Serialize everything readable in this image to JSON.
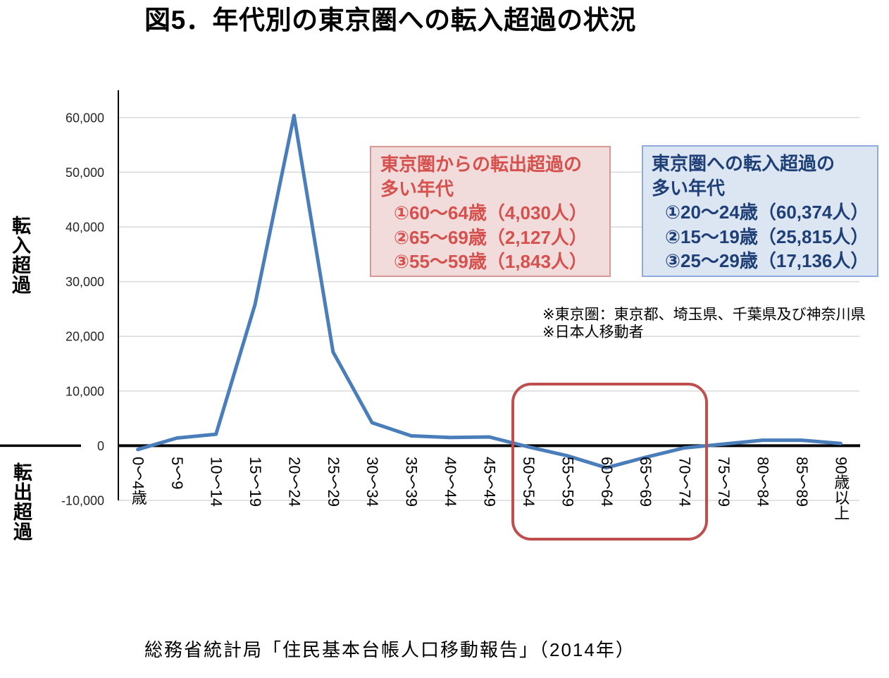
{
  "chart_data": {
    "type": "line",
    "title": "図5．年代別の東京圏への転入超過の状況",
    "y_label_positive": "転入超過",
    "y_label_negative": "転出超過",
    "categories": [
      "0～4歳",
      "5～9",
      "10～14",
      "15～19",
      "20～24",
      "25～29",
      "30～34",
      "35～39",
      "40～44",
      "45～49",
      "50～54",
      "55～59",
      "60～64",
      "65～69",
      "70～74",
      "75～79",
      "80～84",
      "85～89",
      "90歳以上"
    ],
    "values": [
      -700,
      1400,
      2100,
      25815,
      60374,
      17136,
      4200,
      1800,
      1500,
      1600,
      -200,
      -1843,
      -4030,
      -2127,
      -400,
      300,
      1000,
      1000,
      400
    ],
    "y_ticks": [
      {
        "value": 60000,
        "label": "60,000"
      },
      {
        "value": 50000,
        "label": "50,000"
      },
      {
        "value": 40000,
        "label": "40,000"
      },
      {
        "value": 30000,
        "label": "30,000"
      },
      {
        "value": 20000,
        "label": "20,000"
      },
      {
        "value": 10000,
        "label": "10,000"
      },
      {
        "value": 0,
        "label": "0"
      },
      {
        "value": -10000,
        "label": "-10,000"
      }
    ],
    "ylim": [
      -10000,
      65000
    ],
    "grid": true,
    "line_color": "#4a7ebb"
  },
  "outflow_box": {
    "heading_lines": [
      "東京圏からの転出超過の",
      "多い年代"
    ],
    "items": [
      "①60～64歳（4,030人）",
      "②65～69歳（2,127人）",
      "③55～59歳（1,843人）"
    ],
    "text_color": "#d6504d",
    "fill": "#f2dcdb",
    "border": "#d99694"
  },
  "inflow_box": {
    "heading_lines": [
      "東京圏への転入超過の",
      "多い年代"
    ],
    "items": [
      "①20～24歳（60,374人）",
      "②15～19歳（25,815人）",
      "③25～29歳（17,136人）"
    ],
    "text_color": "#1f3f77",
    "fill": "#dce6f2",
    "border": "#8faadc"
  },
  "notes": [
    "※東京圏：東京都、埼玉県、千葉県及び神奈川県",
    "※日本人移動者"
  ],
  "source": "総務省統計局「住民基本台帳人口移動報告」（2014年）"
}
